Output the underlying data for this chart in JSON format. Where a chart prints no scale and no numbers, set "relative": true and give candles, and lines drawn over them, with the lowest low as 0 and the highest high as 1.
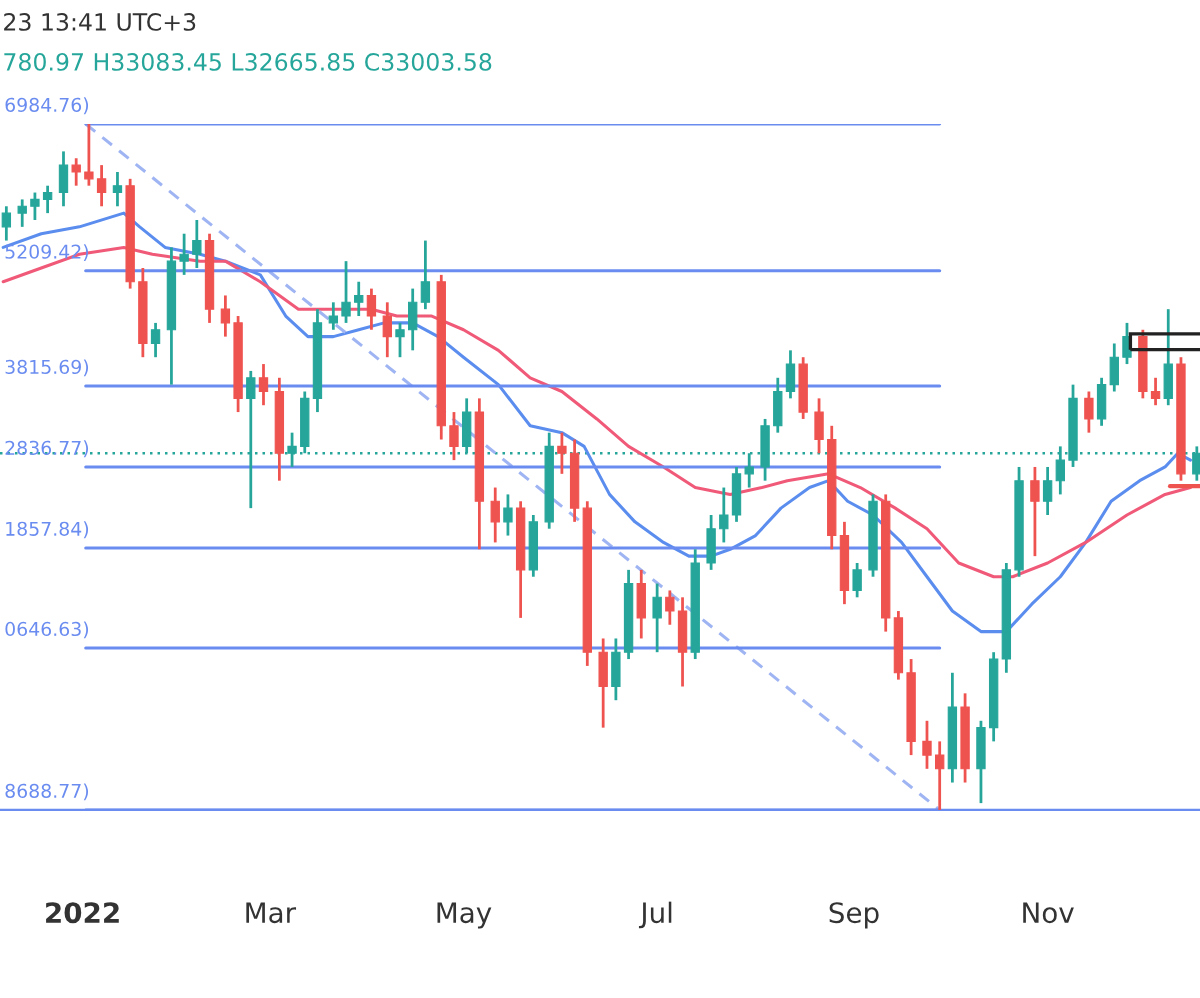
{
  "chart_data": {
    "type": "candlestick",
    "relative": true,
    "annotations": [
      "23 13:41 UTC+3",
      "780.97 H33083.45 L32665.85 C33003.58"
    ],
    "x": [
      "2021-12-08",
      "2021-12-13",
      "2021-12-17",
      "2021-12-21",
      "2021-12-26",
      "2021-12-30",
      "2022-01-03",
      "2022-01-07",
      "2022-01-12",
      "2022-01-16",
      "2022-01-20",
      "2022-01-24",
      "2022-01-29",
      "2022-02-02",
      "2022-02-06",
      "2022-02-10",
      "2022-02-15",
      "2022-02-19",
      "2022-02-23",
      "2022-02-27",
      "2022-03-04",
      "2022-03-08",
      "2022-03-12",
      "2022-03-16",
      "2022-03-21",
      "2022-03-25",
      "2022-03-29",
      "2022-04-02",
      "2022-04-07",
      "2022-04-11",
      "2022-04-15",
      "2022-04-19",
      "2022-04-24",
      "2022-04-28",
      "2022-05-02",
      "2022-05-06",
      "2022-05-11",
      "2022-05-15",
      "2022-05-19",
      "2022-05-23",
      "2022-05-28",
      "2022-06-01",
      "2022-06-05",
      "2022-06-09",
      "2022-06-14",
      "2022-06-18",
      "2022-06-22",
      "2022-06-26",
      "2022-07-01",
      "2022-07-05",
      "2022-07-09",
      "2022-07-13",
      "2022-07-18",
      "2022-07-22",
      "2022-07-26",
      "2022-07-30",
      "2022-08-04",
      "2022-08-08",
      "2022-08-12",
      "2022-08-16",
      "2022-08-21",
      "2022-08-25",
      "2022-08-29",
      "2022-09-02",
      "2022-09-07",
      "2022-09-11",
      "2022-09-15",
      "2022-09-19",
      "2022-09-24",
      "2022-09-28",
      "2022-10-02",
      "2022-10-06",
      "2022-10-11",
      "2022-10-15",
      "2022-10-19",
      "2022-10-23",
      "2022-10-28",
      "2022-11-01",
      "2022-11-05",
      "2022-11-09",
      "2022-11-14",
      "2022-11-18",
      "2022-11-22",
      "2022-11-26",
      "2022-12-01",
      "2022-12-05",
      "2022-12-09",
      "2022-12-13",
      "2022-12-18"
    ],
    "ohlc": [
      [
        0.85,
        0.88,
        0.83,
        0.87
      ],
      [
        0.87,
        0.89,
        0.85,
        0.88
      ],
      [
        0.88,
        0.9,
        0.86,
        0.89
      ],
      [
        0.89,
        0.91,
        0.87,
        0.9
      ],
      [
        0.9,
        0.96,
        0.88,
        0.94
      ],
      [
        0.94,
        0.95,
        0.91,
        0.93
      ],
      [
        0.93,
        1,
        0.91,
        0.92
      ],
      [
        0.92,
        0.94,
        0.88,
        0.9
      ],
      [
        0.9,
        0.93,
        0.88,
        0.91
      ],
      [
        0.91,
        0.92,
        0.76,
        0.77
      ],
      [
        0.77,
        0.79,
        0.66,
        0.68
      ],
      [
        0.68,
        0.71,
        0.66,
        0.7
      ],
      [
        0.7,
        0.82,
        0.62,
        0.8
      ],
      [
        0.8,
        0.84,
        0.78,
        0.81
      ],
      [
        0.81,
        0.86,
        0.79,
        0.83
      ],
      [
        0.83,
        0.84,
        0.71,
        0.73
      ],
      [
        0.73,
        0.75,
        0.69,
        0.71
      ],
      [
        0.71,
        0.72,
        0.58,
        0.6
      ],
      [
        0.6,
        0.64,
        0.44,
        0.63
      ],
      [
        0.63,
        0.65,
        0.59,
        0.61
      ],
      [
        0.61,
        0.63,
        0.48,
        0.52
      ],
      [
        0.52,
        0.55,
        0.5,
        0.53
      ],
      [
        0.53,
        0.61,
        0.52,
        0.6
      ],
      [
        0.6,
        0.73,
        0.58,
        0.71
      ],
      [
        0.71,
        0.74,
        0.7,
        0.72
      ],
      [
        0.72,
        0.8,
        0.71,
        0.74
      ],
      [
        0.74,
        0.77,
        0.72,
        0.75
      ],
      [
        0.75,
        0.76,
        0.7,
        0.72
      ],
      [
        0.72,
        0.74,
        0.66,
        0.69
      ],
      [
        0.69,
        0.71,
        0.66,
        0.7
      ],
      [
        0.7,
        0.76,
        0.67,
        0.74
      ],
      [
        0.74,
        0.83,
        0.73,
        0.77
      ],
      [
        0.77,
        0.78,
        0.54,
        0.56
      ],
      [
        0.56,
        0.58,
        0.51,
        0.53
      ],
      [
        0.53,
        0.6,
        0.52,
        0.58
      ],
      [
        0.58,
        0.6,
        0.38,
        0.45
      ],
      [
        0.45,
        0.47,
        0.39,
        0.42
      ],
      [
        0.42,
        0.46,
        0.4,
        0.44
      ],
      [
        0.44,
        0.45,
        0.28,
        0.35
      ],
      [
        0.35,
        0.43,
        0.34,
        0.42
      ],
      [
        0.42,
        0.55,
        0.41,
        0.53
      ],
      [
        0.53,
        0.55,
        0.49,
        0.52
      ],
      [
        0.52,
        0.54,
        0.42,
        0.44
      ],
      [
        0.44,
        0.45,
        0.21,
        0.23
      ],
      [
        0.23,
        0.25,
        0.12,
        0.18
      ],
      [
        0.18,
        0.25,
        0.16,
        0.23
      ],
      [
        0.23,
        0.35,
        0.22,
        0.33
      ],
      [
        0.33,
        0.35,
        0.25,
        0.28
      ],
      [
        0.28,
        0.33,
        0.23,
        0.31
      ],
      [
        0.31,
        0.32,
        0.27,
        0.29
      ],
      [
        0.29,
        0.31,
        0.18,
        0.23
      ],
      [
        0.23,
        0.38,
        0.22,
        0.36
      ],
      [
        0.36,
        0.43,
        0.35,
        0.41
      ],
      [
        0.41,
        0.47,
        0.39,
        0.43
      ],
      [
        0.43,
        0.5,
        0.42,
        0.49
      ],
      [
        0.49,
        0.52,
        0.47,
        0.5
      ],
      [
        0.5,
        0.57,
        0.48,
        0.56
      ],
      [
        0.56,
        0.63,
        0.55,
        0.61
      ],
      [
        0.61,
        0.67,
        0.6,
        0.65
      ],
      [
        0.65,
        0.66,
        0.57,
        0.58
      ],
      [
        0.58,
        0.6,
        0.52,
        0.54
      ],
      [
        0.54,
        0.56,
        0.38,
        0.4
      ],
      [
        0.4,
        0.42,
        0.3,
        0.32
      ],
      [
        0.32,
        0.36,
        0.31,
        0.35
      ],
      [
        0.35,
        0.46,
        0.34,
        0.45
      ],
      [
        0.45,
        0.46,
        0.26,
        0.28
      ],
      [
        0.28,
        0.29,
        0.19,
        0.2
      ],
      [
        0.2,
        0.22,
        0.08,
        0.1
      ],
      [
        0.1,
        0.13,
        0.06,
        0.08
      ],
      [
        0.08,
        0.1,
        0,
        0.06
      ],
      [
        0.06,
        0.2,
        0.04,
        0.15
      ],
      [
        0.15,
        0.17,
        0.04,
        0.06
      ],
      [
        0.06,
        0.13,
        0.01,
        0.12
      ],
      [
        0.12,
        0.23,
        0.1,
        0.22
      ],
      [
        0.22,
        0.36,
        0.2,
        0.35
      ],
      [
        0.35,
        0.5,
        0.34,
        0.48
      ],
      [
        0.48,
        0.5,
        0.37,
        0.45
      ],
      [
        0.45,
        0.5,
        0.43,
        0.48
      ],
      [
        0.48,
        0.53,
        0.46,
        0.51
      ],
      [
        0.51,
        0.62,
        0.5,
        0.6
      ],
      [
        0.6,
        0.61,
        0.55,
        0.57
      ],
      [
        0.57,
        0.63,
        0.56,
        0.62
      ],
      [
        0.62,
        0.68,
        0.61,
        0.66
      ],
      [
        0.66,
        0.71,
        0.65,
        0.69
      ],
      [
        0.69,
        0.7,
        0.6,
        0.61
      ],
      [
        0.61,
        0.63,
        0.59,
        0.6
      ],
      [
        0.6,
        0.73,
        0.59,
        0.65
      ],
      [
        0.65,
        0.66,
        0.48,
        0.49
      ],
      [
        0.49,
        0.53,
        0.48,
        0.52
      ]
    ],
    "colors": [
      "#26a69a",
      "#26a69a",
      "#26a69a",
      "#26a69a",
      "#26a69a",
      "#ef5350",
      "#ef5350",
      "#ef5350",
      "#26a69a",
      "#ef5350",
      "#ef5350",
      "#26a69a",
      "#26a69a",
      "#26a69a",
      "#26a69a",
      "#ef5350",
      "#ef5350",
      "#ef5350",
      "#26a69a",
      "#ef5350",
      "#ef5350",
      "#26a69a",
      "#26a69a",
      "#26a69a",
      "#26a69a",
      "#26a69a",
      "#26a69a",
      "#ef5350",
      "#ef5350",
      "#26a69a",
      "#26a69a",
      "#26a69a",
      "#ef5350",
      "#ef5350",
      "#26a69a",
      "#ef5350",
      "#ef5350",
      "#26a69a",
      "#ef5350",
      "#26a69a",
      "#26a69a",
      "#ef5350",
      "#ef5350",
      "#ef5350",
      "#ef5350",
      "#26a69a",
      "#26a69a",
      "#ef5350",
      "#26a69a",
      "#ef5350",
      "#ef5350",
      "#26a69a",
      "#26a69a",
      "#26a69a",
      "#26a69a",
      "#26a69a",
      "#26a69a",
      "#26a69a",
      "#26a69a",
      "#ef5350",
      "#ef5350",
      "#ef5350",
      "#ef5350",
      "#26a69a",
      "#26a69a",
      "#ef5350",
      "#ef5350",
      "#ef5350",
      "#ef5350",
      "#ef5350",
      "#26a69a",
      "#ef5350",
      "#26a69a",
      "#26a69a",
      "#26a69a",
      "#26a69a",
      "#ef5350",
      "#26a69a",
      "#26a69a",
      "#26a69a",
      "#ef5350",
      "#26a69a",
      "#26a69a",
      "#26a69a",
      "#ef5350",
      "#ef5350",
      "#26a69a",
      "#ef5350",
      "#26a69a"
    ],
    "series": [
      {
        "type": "line",
        "color": "#5b8def",
        "x": [
          "2021-12-07",
          "2021-12-19",
          "2021-12-31",
          "2022-01-14",
          "2022-01-19",
          "2022-01-27",
          "2022-02-07",
          "2022-02-15",
          "2022-02-26",
          "2022-03-06",
          "2022-03-13",
          "2022-03-21",
          "2022-03-29",
          "2022-04-06",
          "2022-04-15",
          "2022-04-23",
          "2022-05-01",
          "2022-05-12",
          "2022-05-22",
          "2022-06-01",
          "2022-06-08",
          "2022-06-16",
          "2022-06-24",
          "2022-07-03",
          "2022-07-11",
          "2022-07-18",
          "2022-07-24",
          "2022-08-01",
          "2022-08-09",
          "2022-08-18",
          "2022-08-24",
          "2022-08-30",
          "2022-09-07",
          "2022-09-16",
          "2022-09-24",
          "2022-10-02",
          "2022-10-11",
          "2022-10-19",
          "2022-10-27",
          "2022-11-05",
          "2022-11-13",
          "2022-11-21",
          "2022-11-30",
          "2022-12-08",
          "2022-12-12",
          "2022-12-16"
        ],
        "values": [
          0.82,
          0.84,
          0.85,
          0.87,
          0.85,
          0.82,
          0.81,
          0.8,
          0.78,
          0.72,
          0.69,
          0.69,
          0.7,
          0.71,
          0.71,
          0.69,
          0.66,
          0.62,
          0.56,
          0.55,
          0.53,
          0.46,
          0.42,
          0.39,
          0.37,
          0.37,
          0.38,
          0.4,
          0.44,
          0.47,
          0.48,
          0.45,
          0.43,
          0.39,
          0.34,
          0.29,
          0.26,
          0.26,
          0.3,
          0.34,
          0.39,
          0.45,
          0.48,
          0.5,
          0.52,
          0.51
        ]
      },
      {
        "type": "line",
        "color": "#f05a78",
        "x": [
          "2021-12-07",
          "2021-12-19",
          "2021-12-31",
          "2022-01-14",
          "2022-01-23",
          "2022-02-07",
          "2022-02-15",
          "2022-02-26",
          "2022-03-10",
          "2022-03-21",
          "2022-04-02",
          "2022-04-10",
          "2022-04-21",
          "2022-05-01",
          "2022-05-12",
          "2022-05-22",
          "2022-06-01",
          "2022-06-12",
          "2022-06-22",
          "2022-07-03",
          "2022-07-13",
          "2022-07-24",
          "2022-08-03",
          "2022-08-11",
          "2022-08-24",
          "2022-09-03",
          "2022-09-14",
          "2022-09-24",
          "2022-10-04",
          "2022-10-15",
          "2022-10-21",
          "2022-11-01",
          "2022-11-13",
          "2022-11-26",
          "2022-12-08",
          "2022-12-16"
        ],
        "values": [
          0.77,
          0.79,
          0.81,
          0.82,
          0.81,
          0.8,
          0.8,
          0.77,
          0.73,
          0.73,
          0.73,
          0.72,
          0.72,
          0.7,
          0.67,
          0.63,
          0.61,
          0.57,
          0.53,
          0.5,
          0.47,
          0.46,
          0.47,
          0.48,
          0.49,
          0.47,
          0.44,
          0.41,
          0.36,
          0.34,
          0.34,
          0.36,
          0.39,
          0.43,
          0.46,
          0.47
        ]
      },
      {
        "type": "line",
        "line_style": "dashed",
        "color": "#9fb4f2",
        "x": [
          "2022-01-02",
          "2022-09-28"
        ],
        "values": [
          1,
          0
        ]
      },
      {
        "type": "line",
        "name": "6984.76)",
        "color": "#6a8cf0",
        "x": [
          "2022-01-02",
          "2022-09-28"
        ],
        "values": [
          1,
          1
        ]
      },
      {
        "type": "line",
        "name": "5209.42)",
        "color": "#6a8cf0",
        "x": [
          "2022-01-02",
          "2022-09-28"
        ],
        "values": [
          0.786,
          0.786
        ]
      },
      {
        "type": "line",
        "name": "3815.69)",
        "color": "#6a8cf0",
        "x": [
          "2022-01-02",
          "2022-09-28"
        ],
        "values": [
          0.618,
          0.618
        ]
      },
      {
        "type": "line",
        "name": "2836.77)",
        "color": "#6a8cf0",
        "x": [
          "2022-01-02",
          "2022-09-28"
        ],
        "values": [
          0.5,
          0.5
        ]
      },
      {
        "type": "line",
        "name": "1857.84)",
        "color": "#6a8cf0",
        "x": [
          "2022-01-02",
          "2022-09-28"
        ],
        "values": [
          0.382,
          0.382
        ]
      },
      {
        "type": "line",
        "name": "0646.63)",
        "color": "#6a8cf0",
        "x": [
          "2022-01-02",
          "2022-09-28"
        ],
        "values": [
          0.236,
          0.236
        ]
      },
      {
        "type": "line",
        "name": "8688.77)",
        "color": "#6a8cf0",
        "x": [
          "2022-01-02",
          "2022-09-28"
        ],
        "values": [
          0,
          0
        ]
      }
    ],
    "ref_lines": [
      {
        "axis": "y",
        "value": 0.52,
        "color": "#26a69a",
        "line_style": "dotted"
      }
    ],
    "xlim": [
      "2021-12-06",
      "2022-12-19"
    ],
    "xticks": [
      {
        "value": "2022-01-01",
        "label": "2022"
      },
      {
        "value": "2022-03-01",
        "label": "Mar"
      },
      {
        "value": "2022-05-01",
        "label": "May"
      },
      {
        "value": "2022-07-01",
        "label": "Jul"
      },
      {
        "value": "2022-09-01",
        "label": "Sep"
      },
      {
        "value": "2022-11-01",
        "label": "Nov"
      }
    ],
    "tick_labels": "x"
  }
}
